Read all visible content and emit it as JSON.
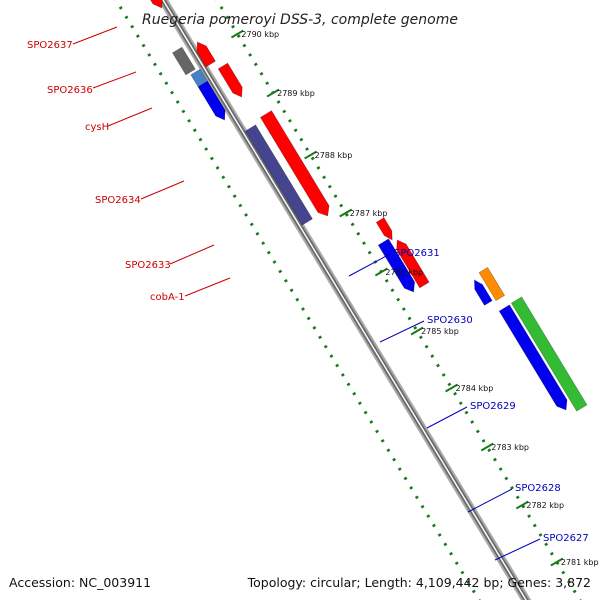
{
  "title": "Ruegeria pomeroyi DSS-3, complete genome",
  "footer": {
    "accession": "Accession: NC_003911",
    "summary": "Topology: circular; Length: 4,109,442 bp; Genes: 3,872"
  },
  "colors": {
    "background": "#ffffff",
    "backbone": "#888888",
    "forward_label": "#cc0000",
    "reverse_label": "#0000bb",
    "dotted_track": "#1a7a1a",
    "red_gene": "#ff0000",
    "blue_gene": "#0000ee",
    "navy_gene": "#44448f",
    "grey_gene": "#666666",
    "steel_gene": "#4682c8",
    "orange_gene": "#ff8c00",
    "green_gene": "#33bb33",
    "cyan_gene": "#22cccc"
  },
  "scale": {
    "unit": "kbp",
    "ticks": [
      "2790 kbp",
      "2789 kbp",
      "2788 kbp",
      "2787 kbp",
      "2786 kbp",
      "2785 kbp",
      "2784 kbp",
      "2783 kbp",
      "2782 kbp",
      "2781 kbp"
    ]
  },
  "forward_genes": [
    {
      "label": "SPO2637",
      "color": "#cc0000"
    },
    {
      "label": "SPO2636",
      "color": "#cc0000"
    },
    {
      "label": "cysH",
      "color": "#cc0000"
    },
    {
      "label": "SPO2634",
      "color": "#cc0000"
    },
    {
      "label": "SPO2633",
      "color": "#cc0000"
    },
    {
      "label": "cobA-1",
      "color": "#cc0000"
    }
  ],
  "reverse_genes": [
    {
      "label": "SPO2631",
      "color": "#0000bb"
    },
    {
      "label": "SPO2630",
      "color": "#0000bb"
    },
    {
      "label": "SPO2629",
      "color": "#0000bb"
    },
    {
      "label": "SPO2628",
      "color": "#0000bb"
    },
    {
      "label": "SPO2627",
      "color": "#0000bb"
    }
  ]
}
